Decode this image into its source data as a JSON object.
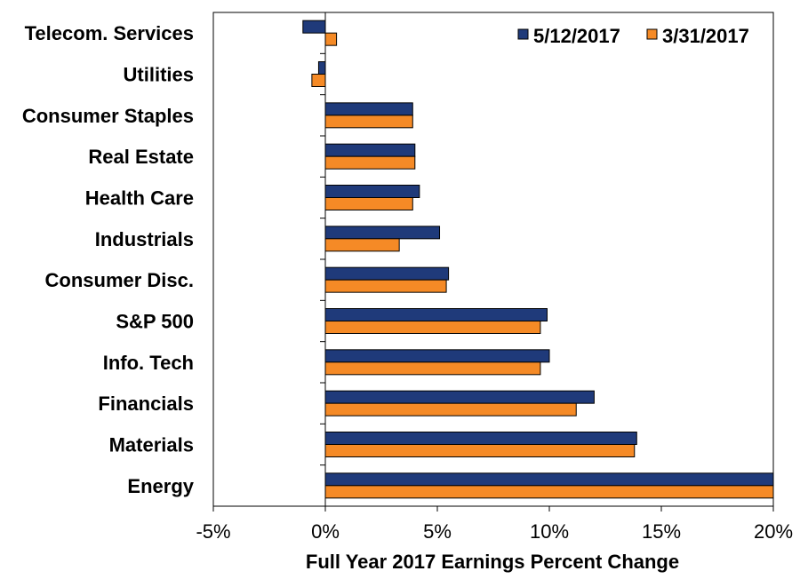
{
  "colors": {
    "series1": "#1f3a7a",
    "series2": "#f58a26",
    "bar_stroke": "#000000",
    "frame": "#000000",
    "background": "#ffffff"
  },
  "chart_data": {
    "type": "bar",
    "orientation": "horizontal",
    "categories": [
      "Telecom. Services",
      "Utilities",
      "Consumer Staples",
      "Real Estate",
      "Health Care",
      "Industrials",
      "Consumer Disc.",
      "S&P 500",
      "Info. Tech",
      "Financials",
      "Materials",
      "Energy"
    ],
    "series": [
      {
        "name": "5/12/2017",
        "values": [
          -1.0,
          -0.3,
          3.9,
          4.0,
          4.2,
          5.1,
          5.5,
          9.9,
          10.0,
          12.0,
          13.9,
          20.0
        ]
      },
      {
        "name": "3/31/2017",
        "values": [
          0.5,
          -0.6,
          3.9,
          4.0,
          3.9,
          3.3,
          5.4,
          9.6,
          9.6,
          11.2,
          13.8,
          20.0
        ]
      }
    ],
    "xlim": [
      -5,
      20
    ],
    "xticks": [
      -5,
      0,
      5,
      10,
      15,
      20
    ],
    "xtick_labels": [
      "-5%",
      "0%",
      "5%",
      "10%",
      "15%",
      "20%"
    ],
    "xlabel": "Full Year 2017 Earnings Percent Change",
    "ylabel": "",
    "title": "",
    "grid": false,
    "legend_position": "top-right"
  }
}
